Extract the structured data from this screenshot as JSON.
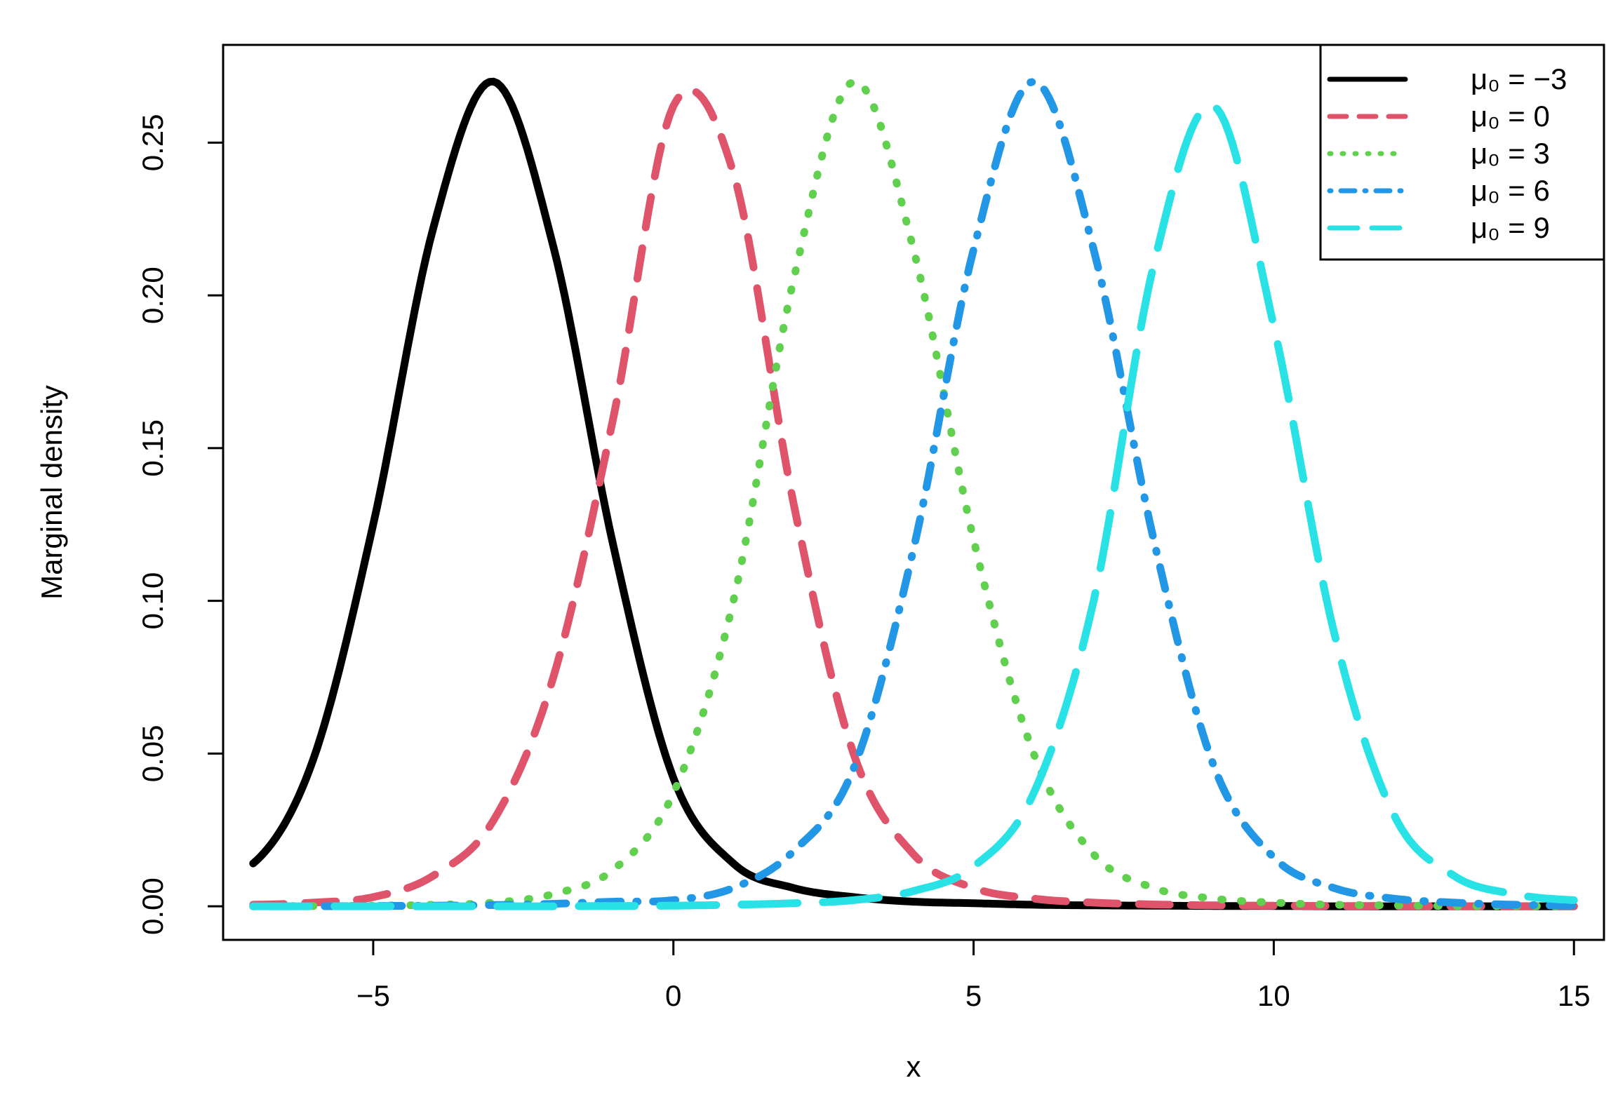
{
  "chart_data": {
    "type": "line",
    "title": "",
    "xlabel": "x",
    "ylabel": "Marginal density",
    "xlim": [
      -7.5,
      15.5
    ],
    "ylim": [
      -0.011,
      0.282
    ],
    "x_ticks": [
      -5,
      0,
      5,
      10,
      15
    ],
    "x_tick_labels": [
      "−5",
      "0",
      "5",
      "10",
      "15"
    ],
    "y_ticks": [
      0.0,
      0.05,
      0.1,
      0.15,
      0.2,
      0.25
    ],
    "y_tick_labels": [
      "0.00",
      "0.05",
      "0.10",
      "0.15",
      "0.20",
      "0.25"
    ],
    "grid": false,
    "legend_position": "top-right",
    "x": [
      -7,
      -6,
      -5,
      -4,
      -3,
      -2,
      -1,
      0,
      1,
      2,
      3,
      4,
      5,
      6,
      7,
      8,
      9,
      10,
      11,
      12,
      13,
      14,
      15
    ],
    "series": [
      {
        "name": "μ₀ = −3",
        "color": "#000000",
        "style": "solid",
        "values": [
          0.014,
          0.048,
          0.125,
          0.222,
          0.27,
          0.216,
          0.118,
          0.042,
          0.014,
          0.006,
          0.003,
          0.0015,
          0.001,
          0.0005,
          0.0003,
          0.0002,
          0.0001,
          0.0001,
          0.0,
          0.0,
          0.0,
          0.0,
          0.0
        ]
      },
      {
        "name": "μ₀ = 0",
        "color": "#DF536B",
        "style": "dashed",
        "values": [
          0.0005,
          0.0012,
          0.003,
          0.01,
          0.028,
          0.075,
          0.16,
          0.262,
          0.24,
          0.132,
          0.05,
          0.017,
          0.006,
          0.0025,
          0.0012,
          0.0006,
          0.0003,
          0.0002,
          0.0001,
          0.0001,
          0.0,
          0.0,
          0.0
        ]
      },
      {
        "name": "μ₀ = 3",
        "color": "#61D04F",
        "style": "dotted",
        "values": [
          0.0,
          0.0001,
          0.0002,
          0.0005,
          0.0012,
          0.004,
          0.012,
          0.037,
          0.1,
          0.205,
          0.27,
          0.215,
          0.12,
          0.05,
          0.017,
          0.006,
          0.0025,
          0.0012,
          0.0005,
          0.0003,
          0.0001,
          0.0001,
          0.0
        ]
      },
      {
        "name": "μ₀ = 6",
        "color": "#2297E6",
        "style": "dotdash",
        "values": [
          0.0,
          0.0,
          0.0001,
          0.0002,
          0.0004,
          0.0008,
          0.0015,
          0.002,
          0.006,
          0.018,
          0.045,
          0.117,
          0.215,
          0.27,
          0.215,
          0.12,
          0.046,
          0.016,
          0.006,
          0.0025,
          0.0012,
          0.0005,
          0.0002
        ]
      },
      {
        "name": "μ₀ = 9",
        "color": "#28E2E5",
        "style": "longdash",
        "values": [
          0.0,
          0.0,
          0.0,
          0.0,
          0.0,
          0.0,
          0.0001,
          0.0002,
          0.0005,
          0.001,
          0.002,
          0.005,
          0.013,
          0.037,
          0.1,
          0.21,
          0.262,
          0.19,
          0.09,
          0.03,
          0.01,
          0.004,
          0.002
        ]
      }
    ]
  }
}
